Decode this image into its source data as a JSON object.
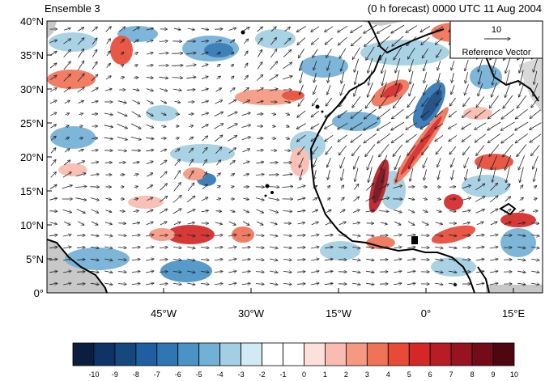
{
  "title_left": "Ensemble 3",
  "title_right": "(0 h forecast) 0000 UTC 11 Aug 2004",
  "map": {
    "lon_range": [
      -65,
      20
    ],
    "lat_range": [
      0,
      40
    ],
    "y_ticks": [
      "40°N",
      "35°N",
      "30°N",
      "25°N",
      "20°N",
      "15°N",
      "10°N",
      "5°N",
      "0°"
    ],
    "y_tick_values": [
      40,
      35,
      30,
      25,
      20,
      15,
      10,
      5,
      0
    ],
    "x_ticks": [
      "45°W",
      "30°W",
      "15°W",
      "0°",
      "15°E"
    ],
    "x_tick_values": [
      -45,
      -30,
      -15,
      0,
      15
    ]
  },
  "reference_vector": {
    "value": "10",
    "label": "Reference Vector"
  },
  "colorbar": {
    "labels": [
      "-10",
      "-9",
      "-8",
      "-7",
      "-6",
      "-5",
      "-4",
      "-3",
      "-2",
      "-1",
      "0",
      "1",
      "2",
      "3",
      "4",
      "5",
      "6",
      "7",
      "8",
      "9",
      "10"
    ],
    "colors": [
      "#0a1e40",
      "#0e3366",
      "#14487f",
      "#1d5fa0",
      "#2f76b5",
      "#4a93c6",
      "#72b0d6",
      "#a2cfe3",
      "#d1eaf3",
      "#ffffff",
      "#ffffff",
      "#fde0dc",
      "#f9bcb0",
      "#f69882",
      "#f07358",
      "#e84a37",
      "#d42828",
      "#b81c24",
      "#951420",
      "#730c18",
      "#500610"
    ]
  },
  "colors": {
    "land": "#000000",
    "mask": "#c8c8c8"
  }
}
